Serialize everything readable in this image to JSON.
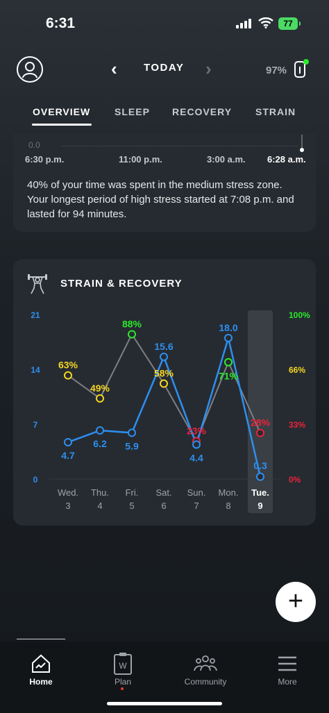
{
  "status_bar": {
    "time": "6:31",
    "battery": "77"
  },
  "header": {
    "nav_label": "TODAY",
    "device_battery": "97%"
  },
  "tabs": [
    {
      "label": "OVERVIEW"
    },
    {
      "label": "SLEEP"
    },
    {
      "label": "RECOVERY"
    },
    {
      "label": "STRAIN"
    }
  ],
  "stress_card": {
    "axis_zero": "0.0",
    "times": [
      "6:30 p.m.",
      "11:00 p.m.",
      "3:00 a.m.",
      "6:28 a.m."
    ],
    "description": "40% of your time was spent in the medium stress zone. Your longest period of high stress started at 7:08 p.m. and lasted for 94 minutes."
  },
  "strain_recovery": {
    "title": "STRAIN & RECOVERY",
    "colors": {
      "strain": "#2d8ff0",
      "recovery_green": "#2ce82c",
      "recovery_yellow": "#f5d523",
      "recovery_red": "#e8233a",
      "grey_line": "#7c8085"
    },
    "chart_data": {
      "type": "line",
      "categories": [
        "Wed.",
        "Thu.",
        "Fri.",
        "Sat.",
        "Sun.",
        "Mon.",
        "Tue."
      ],
      "dates": [
        "3",
        "4",
        "5",
        "6",
        "7",
        "8",
        "9"
      ],
      "selected_index": 6,
      "left_axis": {
        "ticks": [
          "21",
          "14",
          "7",
          "0"
        ],
        "ylim": [
          0,
          21
        ]
      },
      "right_axis": {
        "ticks": [
          "100%",
          "66%",
          "33%",
          "0%"
        ],
        "ylim": [
          0,
          100
        ]
      },
      "series": [
        {
          "values": [
            4.7,
            6.2,
            5.9,
            15.6,
            4.4,
            18.0,
            0.3
          ],
          "labels": [
            "4.7",
            "6.2",
            "5.9",
            "15.6",
            "4.4",
            "18.0",
            "0.3"
          ]
        },
        {
          "values": [
            63,
            49,
            88,
            58,
            23,
            71,
            28
          ],
          "labels": [
            "63%",
            "49%",
            "88%",
            "58%",
            "23%",
            "71%",
            "28%"
          ],
          "colors": [
            "yellow",
            "yellow",
            "green",
            "yellow",
            "red",
            "green",
            "red"
          ]
        }
      ]
    }
  },
  "bottom_nav": [
    {
      "label": "Home"
    },
    {
      "label": "Plan"
    },
    {
      "label": "Community"
    },
    {
      "label": "More"
    }
  ],
  "fab_label": "+"
}
